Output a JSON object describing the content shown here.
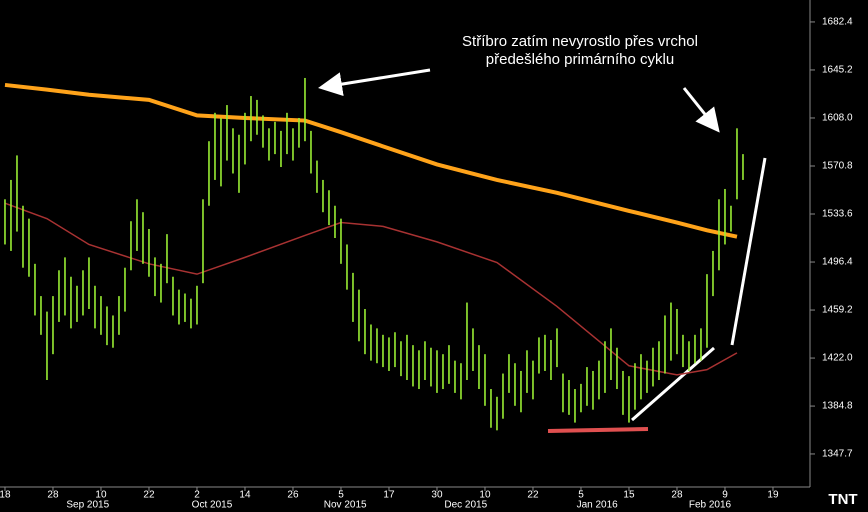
{
  "chart_data": {
    "type": "ohlc",
    "annotation": [
      "Stříbro zatím nevyrostlo přes vrchol",
      "předešlého primárního cyklu"
    ],
    "logo": "TNT",
    "ylim": [
      1322.1,
      1699.4
    ],
    "yticks": [
      1347.7,
      1384.8,
      {
        "value": 1422,
        "label": "1422.0"
      },
      1459.2,
      1496.4,
      1533.6,
      1570.8,
      {
        "value": 1608,
        "label": "1608.0"
      },
      1645.2,
      1682.4
    ],
    "xlim": [
      -0.83,
      134.17
    ],
    "xticks": [
      {
        "value": 0,
        "label": "18"
      },
      {
        "value": 8,
        "label": "28"
      },
      {
        "value": 16,
        "label": "10"
      },
      {
        "value": 24,
        "label": "22"
      },
      {
        "value": 32,
        "label": "2"
      },
      {
        "value": 40,
        "label": "14"
      },
      {
        "value": 48,
        "label": "26"
      },
      {
        "value": 56,
        "label": "5"
      },
      {
        "value": 64,
        "label": "17"
      },
      {
        "value": 72,
        "label": "30"
      },
      {
        "value": 80,
        "label": "10"
      },
      {
        "value": 88,
        "label": "22"
      },
      {
        "value": 96,
        "label": "5"
      },
      {
        "value": 104,
        "label": "15"
      },
      {
        "value": 112,
        "label": "28"
      },
      {
        "value": 120,
        "label": "9"
      },
      {
        "value": 128,
        "label": "19"
      }
    ],
    "month_labels": [
      {
        "value": 13.8,
        "label": "Sep 2015"
      },
      {
        "value": 34.5,
        "label": "Oct 2015"
      },
      {
        "value": 56.7,
        "label": "Nov 2015"
      },
      {
        "value": 76.8,
        "label": "Dec 2015"
      },
      {
        "value": 98.7,
        "label": "Jan 2016"
      },
      {
        "value": 117.5,
        "label": "Feb 2016"
      }
    ],
    "bars": {
      "color": "#99ee33",
      "x": [
        0,
        1,
        2,
        3,
        4,
        5,
        6,
        7,
        8,
        9,
        10,
        11,
        12,
        13,
        14,
        15,
        16,
        17,
        18,
        19,
        20,
        21,
        22,
        23,
        24,
        25,
        26,
        27,
        28,
        29,
        30,
        31,
        32,
        33,
        34,
        35,
        36,
        37,
        38,
        39,
        40,
        41,
        42,
        43,
        44,
        45,
        46,
        47,
        48,
        49,
        50,
        51,
        52,
        53,
        54,
        55,
        56,
        57,
        58,
        59,
        60,
        61,
        62,
        63,
        64,
        65,
        66,
        67,
        68,
        69,
        70,
        71,
        72,
        73,
        74,
        75,
        76,
        77,
        78,
        79,
        80,
        81,
        82,
        83,
        84,
        85,
        86,
        87,
        88,
        89,
        90,
        91,
        92,
        93,
        94,
        95,
        96,
        97,
        98,
        99,
        100,
        101,
        102,
        103,
        104,
        105,
        106,
        107,
        108,
        109,
        110,
        111,
        112,
        113,
        114,
        115,
        116,
        117,
        118,
        119,
        120,
        121,
        122,
        123
      ],
      "high": [
        1545,
        1560,
        1579,
        1540,
        1530,
        1495,
        1470,
        1458,
        1470,
        1490,
        1500,
        1485,
        1478,
        1490,
        1500,
        1478,
        1470,
        1462,
        1455,
        1470,
        1492,
        1528,
        1545,
        1535,
        1522,
        1500,
        1495,
        1518,
        1485,
        1475,
        1472,
        1468,
        1478,
        1545,
        1590,
        1612,
        1608,
        1618,
        1600,
        1595,
        1612,
        1625,
        1622,
        1610,
        1600,
        1605,
        1598,
        1612,
        1600,
        1608,
        1639,
        1598,
        1575,
        1560,
        1552,
        1540,
        1530,
        1510,
        1488,
        1475,
        1460,
        1448,
        1445,
        1440,
        1438,
        1442,
        1435,
        1440,
        1432,
        1428,
        1435,
        1430,
        1428,
        1425,
        1432,
        1420,
        1418,
        1465,
        1445,
        1432,
        1425,
        1398,
        1392,
        1410,
        1425,
        1418,
        1412,
        1428,
        1420,
        1438,
        1440,
        1436,
        1445,
        1410,
        1405,
        1398,
        1402,
        1415,
        1412,
        1420,
        1435,
        1445,
        1430,
        1412,
        1408,
        1418,
        1425,
        1420,
        1430,
        1435,
        1455,
        1465,
        1460,
        1440,
        1435,
        1440,
        1445,
        1487,
        1505,
        1545,
        1553,
        1540,
        1600,
        1580
      ],
      "low": [
        1510,
        1505,
        1520,
        1492,
        1485,
        1455,
        1440,
        1405,
        1425,
        1450,
        1455,
        1445,
        1450,
        1455,
        1460,
        1445,
        1440,
        1432,
        1430,
        1440,
        1458,
        1490,
        1505,
        1495,
        1485,
        1470,
        1465,
        1480,
        1455,
        1448,
        1450,
        1445,
        1448,
        1480,
        1540,
        1560,
        1555,
        1575,
        1565,
        1550,
        1572,
        1590,
        1595,
        1585,
        1575,
        1580,
        1570,
        1580,
        1575,
        1585,
        1590,
        1565,
        1550,
        1535,
        1525,
        1515,
        1495,
        1475,
        1450,
        1435,
        1425,
        1420,
        1418,
        1415,
        1412,
        1415,
        1408,
        1405,
        1400,
        1398,
        1405,
        1400,
        1395,
        1398,
        1402,
        1395,
        1390,
        1405,
        1412,
        1398,
        1385,
        1368,
        1366,
        1375,
        1395,
        1385,
        1380,
        1395,
        1390,
        1410,
        1412,
        1405,
        1415,
        1380,
        1378,
        1372,
        1380,
        1385,
        1382,
        1390,
        1395,
        1405,
        1398,
        1378,
        1372,
        1382,
        1390,
        1395,
        1400,
        1405,
        1410,
        1420,
        1425,
        1415,
        1412,
        1418,
        1420,
        1430,
        1470,
        1490,
        1510,
        1520,
        1545,
        1560
      ]
    },
    "lines": [
      {
        "color": "#ffa31a",
        "x": [
          0,
          7,
          14,
          24,
          32,
          40,
          50,
          56,
          63,
          72,
          82,
          92,
          104,
          112,
          117,
          122
        ],
        "values": [
          1633.6,
          1630,
          1626,
          1622,
          1610,
          1608,
          1606,
          1597,
          1586,
          1572,
          1560,
          1550,
          1536,
          1527,
          1521,
          1516
        ]
      },
      {
        "color": "#a83232",
        "x": [
          0,
          7,
          14,
          24,
          32,
          40,
          50,
          56,
          63,
          72,
          82,
          92,
          104,
          112,
          117,
          122
        ],
        "values": [
          1542,
          1530,
          1510,
          1495,
          1487,
          1500,
          1517,
          1527,
          1524,
          1512,
          1496,
          1462,
          1416,
          1409,
          1413,
          1426
        ]
      }
    ]
  }
}
